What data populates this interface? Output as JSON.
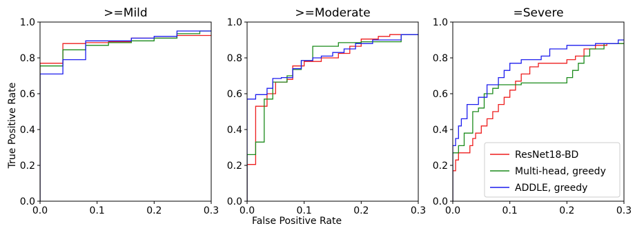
{
  "figure": {
    "ylabel": "True Positive Rate",
    "xlabel": "False Positive Rate"
  },
  "legend": {
    "placement": "lower-right of third panel",
    "entries": [
      {
        "label": "ResNet18-BD",
        "color": "#ee1c1c"
      },
      {
        "label": "Multi-head, greedy",
        "color": "#1a8a1a"
      },
      {
        "label": "ADDLE, greedy",
        "color": "#1c1cee"
      }
    ]
  },
  "chart_data": [
    {
      "type": "line",
      "title": ">=Mild",
      "xlim": [
        0,
        0.3
      ],
      "ylim": [
        0,
        1.0
      ],
      "xticks": [
        "0.0",
        "0.1",
        "0.2",
        "0.3"
      ],
      "yticks": [
        "0.0",
        "0.2",
        "0.4",
        "0.6",
        "0.8",
        "1.0"
      ],
      "series": [
        {
          "name": "ResNet18-BD",
          "color": "#ee1c1c",
          "points": [
            [
              0,
              0
            ],
            [
              0,
              0.77
            ],
            [
              0.04,
              0.77
            ],
            [
              0.04,
              0.88
            ],
            [
              0.08,
              0.88
            ],
            [
              0.08,
              0.885
            ],
            [
              0.12,
              0.885
            ],
            [
              0.12,
              0.89
            ],
            [
              0.16,
              0.89
            ],
            [
              0.16,
              0.91
            ],
            [
              0.24,
              0.91
            ],
            [
              0.24,
              0.925
            ],
            [
              0.3,
              0.925
            ]
          ]
        },
        {
          "name": "Multi-head, greedy",
          "color": "#1a8a1a",
          "points": [
            [
              0,
              0
            ],
            [
              0,
              0.755
            ],
            [
              0.04,
              0.755
            ],
            [
              0.04,
              0.845
            ],
            [
              0.08,
              0.845
            ],
            [
              0.08,
              0.87
            ],
            [
              0.12,
              0.87
            ],
            [
              0.12,
              0.885
            ],
            [
              0.16,
              0.885
            ],
            [
              0.16,
              0.895
            ],
            [
              0.2,
              0.895
            ],
            [
              0.2,
              0.91
            ],
            [
              0.24,
              0.91
            ],
            [
              0.24,
              0.935
            ],
            [
              0.28,
              0.935
            ],
            [
              0.28,
              0.95
            ],
            [
              0.3,
              0.95
            ]
          ]
        },
        {
          "name": "ADDLE, greedy",
          "color": "#1c1cee",
          "points": [
            [
              0,
              0
            ],
            [
              0,
              0.71
            ],
            [
              0.04,
              0.71
            ],
            [
              0.04,
              0.79
            ],
            [
              0.08,
              0.79
            ],
            [
              0.08,
              0.895
            ],
            [
              0.16,
              0.895
            ],
            [
              0.16,
              0.91
            ],
            [
              0.2,
              0.91
            ],
            [
              0.2,
              0.92
            ],
            [
              0.24,
              0.92
            ],
            [
              0.24,
              0.95
            ],
            [
              0.3,
              0.95
            ]
          ]
        }
      ]
    },
    {
      "type": "line",
      "title": ">=Moderate",
      "xlim": [
        0,
        0.3
      ],
      "ylim": [
        0,
        1.0
      ],
      "xticks": [
        "0.0",
        "0.1",
        "0.2",
        "0.3"
      ],
      "yticks": [
        "0.0",
        "0.2",
        "0.4",
        "0.6",
        "0.8",
        "1.0"
      ],
      "series": [
        {
          "name": "ResNet18-BD",
          "color": "#ee1c1c",
          "points": [
            [
              0,
              0
            ],
            [
              0,
              0.205
            ],
            [
              0.015,
              0.205
            ],
            [
              0.015,
              0.53
            ],
            [
              0.035,
              0.53
            ],
            [
              0.035,
              0.6
            ],
            [
              0.05,
              0.6
            ],
            [
              0.05,
              0.665
            ],
            [
              0.07,
              0.665
            ],
            [
              0.07,
              0.68
            ],
            [
              0.08,
              0.68
            ],
            [
              0.08,
              0.755
            ],
            [
              0.1,
              0.755
            ],
            [
              0.1,
              0.78
            ],
            [
              0.13,
              0.78
            ],
            [
              0.13,
              0.8
            ],
            [
              0.16,
              0.8
            ],
            [
              0.16,
              0.825
            ],
            [
              0.18,
              0.825
            ],
            [
              0.18,
              0.865
            ],
            [
              0.2,
              0.865
            ],
            [
              0.2,
              0.905
            ],
            [
              0.23,
              0.905
            ],
            [
              0.23,
              0.92
            ],
            [
              0.25,
              0.92
            ],
            [
              0.25,
              0.93
            ],
            [
              0.3,
              0.93
            ]
          ]
        },
        {
          "name": "Multi-head, greedy",
          "color": "#1a8a1a",
          "points": [
            [
              0,
              0
            ],
            [
              0,
              0.26
            ],
            [
              0.015,
              0.26
            ],
            [
              0.015,
              0.33
            ],
            [
              0.03,
              0.33
            ],
            [
              0.03,
              0.57
            ],
            [
              0.045,
              0.57
            ],
            [
              0.045,
              0.665
            ],
            [
              0.07,
              0.665
            ],
            [
              0.07,
              0.7
            ],
            [
              0.08,
              0.7
            ],
            [
              0.08,
              0.735
            ],
            [
              0.095,
              0.735
            ],
            [
              0.095,
              0.785
            ],
            [
              0.115,
              0.785
            ],
            [
              0.115,
              0.865
            ],
            [
              0.16,
              0.865
            ],
            [
              0.16,
              0.885
            ],
            [
              0.2,
              0.885
            ],
            [
              0.2,
              0.89
            ],
            [
              0.27,
              0.89
            ],
            [
              0.27,
              0.93
            ],
            [
              0.3,
              0.93
            ]
          ]
        },
        {
          "name": "ADDLE, greedy",
          "color": "#1c1cee",
          "points": [
            [
              0,
              0
            ],
            [
              0,
              0.57
            ],
            [
              0.015,
              0.57
            ],
            [
              0.015,
              0.595
            ],
            [
              0.035,
              0.595
            ],
            [
              0.035,
              0.63
            ],
            [
              0.045,
              0.63
            ],
            [
              0.045,
              0.685
            ],
            [
              0.06,
              0.685
            ],
            [
              0.06,
              0.69
            ],
            [
              0.08,
              0.69
            ],
            [
              0.08,
              0.74
            ],
            [
              0.095,
              0.74
            ],
            [
              0.095,
              0.785
            ],
            [
              0.115,
              0.785
            ],
            [
              0.115,
              0.8
            ],
            [
              0.13,
              0.8
            ],
            [
              0.13,
              0.81
            ],
            [
              0.15,
              0.81
            ],
            [
              0.15,
              0.83
            ],
            [
              0.17,
              0.83
            ],
            [
              0.17,
              0.85
            ],
            [
              0.19,
              0.85
            ],
            [
              0.19,
              0.88
            ],
            [
              0.22,
              0.88
            ],
            [
              0.22,
              0.9
            ],
            [
              0.27,
              0.9
            ],
            [
              0.27,
              0.93
            ],
            [
              0.3,
              0.93
            ]
          ]
        }
      ]
    },
    {
      "type": "line",
      "title": "=Severe",
      "xlim": [
        0,
        0.3
      ],
      "ylim": [
        0,
        1.0
      ],
      "xticks": [
        "0.0",
        "0.1",
        "0.2",
        "0.3"
      ],
      "yticks": [
        "0.0",
        "0.2",
        "0.4",
        "0.6",
        "0.8",
        "1.0"
      ],
      "series": [
        {
          "name": "ResNet18-BD",
          "color": "#ee1c1c",
          "points": [
            [
              0,
              0
            ],
            [
              0,
              0.17
            ],
            [
              0.005,
              0.17
            ],
            [
              0.005,
              0.23
            ],
            [
              0.01,
              0.23
            ],
            [
              0.01,
              0.27
            ],
            [
              0.03,
              0.27
            ],
            [
              0.03,
              0.31
            ],
            [
              0.035,
              0.31
            ],
            [
              0.035,
              0.35
            ],
            [
              0.04,
              0.35
            ],
            [
              0.04,
              0.38
            ],
            [
              0.05,
              0.38
            ],
            [
              0.05,
              0.42
            ],
            [
              0.06,
              0.42
            ],
            [
              0.06,
              0.46
            ],
            [
              0.07,
              0.46
            ],
            [
              0.07,
              0.5
            ],
            [
              0.08,
              0.5
            ],
            [
              0.08,
              0.54
            ],
            [
              0.09,
              0.54
            ],
            [
              0.09,
              0.58
            ],
            [
              0.1,
              0.58
            ],
            [
              0.1,
              0.62
            ],
            [
              0.11,
              0.62
            ],
            [
              0.11,
              0.67
            ],
            [
              0.12,
              0.67
            ],
            [
              0.12,
              0.71
            ],
            [
              0.135,
              0.71
            ],
            [
              0.135,
              0.75
            ],
            [
              0.15,
              0.75
            ],
            [
              0.15,
              0.77
            ],
            [
              0.2,
              0.77
            ],
            [
              0.2,
              0.79
            ],
            [
              0.215,
              0.79
            ],
            [
              0.215,
              0.81
            ],
            [
              0.23,
              0.81
            ],
            [
              0.23,
              0.85
            ],
            [
              0.25,
              0.85
            ],
            [
              0.25,
              0.87
            ],
            [
              0.27,
              0.87
            ],
            [
              0.27,
              0.88
            ],
            [
              0.3,
              0.88
            ]
          ]
        },
        {
          "name": "Multi-head, greedy",
          "color": "#1a8a1a",
          "points": [
            [
              0,
              0
            ],
            [
              0,
              0.27
            ],
            [
              0.01,
              0.27
            ],
            [
              0.01,
              0.31
            ],
            [
              0.02,
              0.31
            ],
            [
              0.02,
              0.38
            ],
            [
              0.035,
              0.38
            ],
            [
              0.035,
              0.5
            ],
            [
              0.045,
              0.5
            ],
            [
              0.045,
              0.52
            ],
            [
              0.055,
              0.52
            ],
            [
              0.055,
              0.6
            ],
            [
              0.07,
              0.6
            ],
            [
              0.07,
              0.63
            ],
            [
              0.08,
              0.63
            ],
            [
              0.08,
              0.65
            ],
            [
              0.12,
              0.65
            ],
            [
              0.12,
              0.66
            ],
            [
              0.2,
              0.66
            ],
            [
              0.2,
              0.69
            ],
            [
              0.21,
              0.69
            ],
            [
              0.21,
              0.73
            ],
            [
              0.22,
              0.73
            ],
            [
              0.22,
              0.77
            ],
            [
              0.23,
              0.77
            ],
            [
              0.23,
              0.81
            ],
            [
              0.24,
              0.81
            ],
            [
              0.24,
              0.85
            ],
            [
              0.265,
              0.85
            ],
            [
              0.265,
              0.88
            ],
            [
              0.3,
              0.88
            ]
          ]
        },
        {
          "name": "ADDLE, greedy",
          "color": "#1c1cee",
          "points": [
            [
              0,
              0
            ],
            [
              0,
              0.31
            ],
            [
              0.005,
              0.31
            ],
            [
              0.005,
              0.35
            ],
            [
              0.01,
              0.35
            ],
            [
              0.01,
              0.42
            ],
            [
              0.015,
              0.42
            ],
            [
              0.015,
              0.46
            ],
            [
              0.025,
              0.46
            ],
            [
              0.025,
              0.54
            ],
            [
              0.045,
              0.54
            ],
            [
              0.045,
              0.58
            ],
            [
              0.06,
              0.58
            ],
            [
              0.06,
              0.65
            ],
            [
              0.08,
              0.65
            ],
            [
              0.08,
              0.69
            ],
            [
              0.09,
              0.69
            ],
            [
              0.09,
              0.73
            ],
            [
              0.1,
              0.73
            ],
            [
              0.1,
              0.77
            ],
            [
              0.12,
              0.77
            ],
            [
              0.12,
              0.79
            ],
            [
              0.155,
              0.79
            ],
            [
              0.155,
              0.81
            ],
            [
              0.17,
              0.81
            ],
            [
              0.17,
              0.85
            ],
            [
              0.2,
              0.85
            ],
            [
              0.2,
              0.87
            ],
            [
              0.25,
              0.87
            ],
            [
              0.25,
              0.88
            ],
            [
              0.29,
              0.88
            ],
            [
              0.29,
              0.9
            ],
            [
              0.3,
              0.9
            ]
          ]
        }
      ]
    }
  ]
}
